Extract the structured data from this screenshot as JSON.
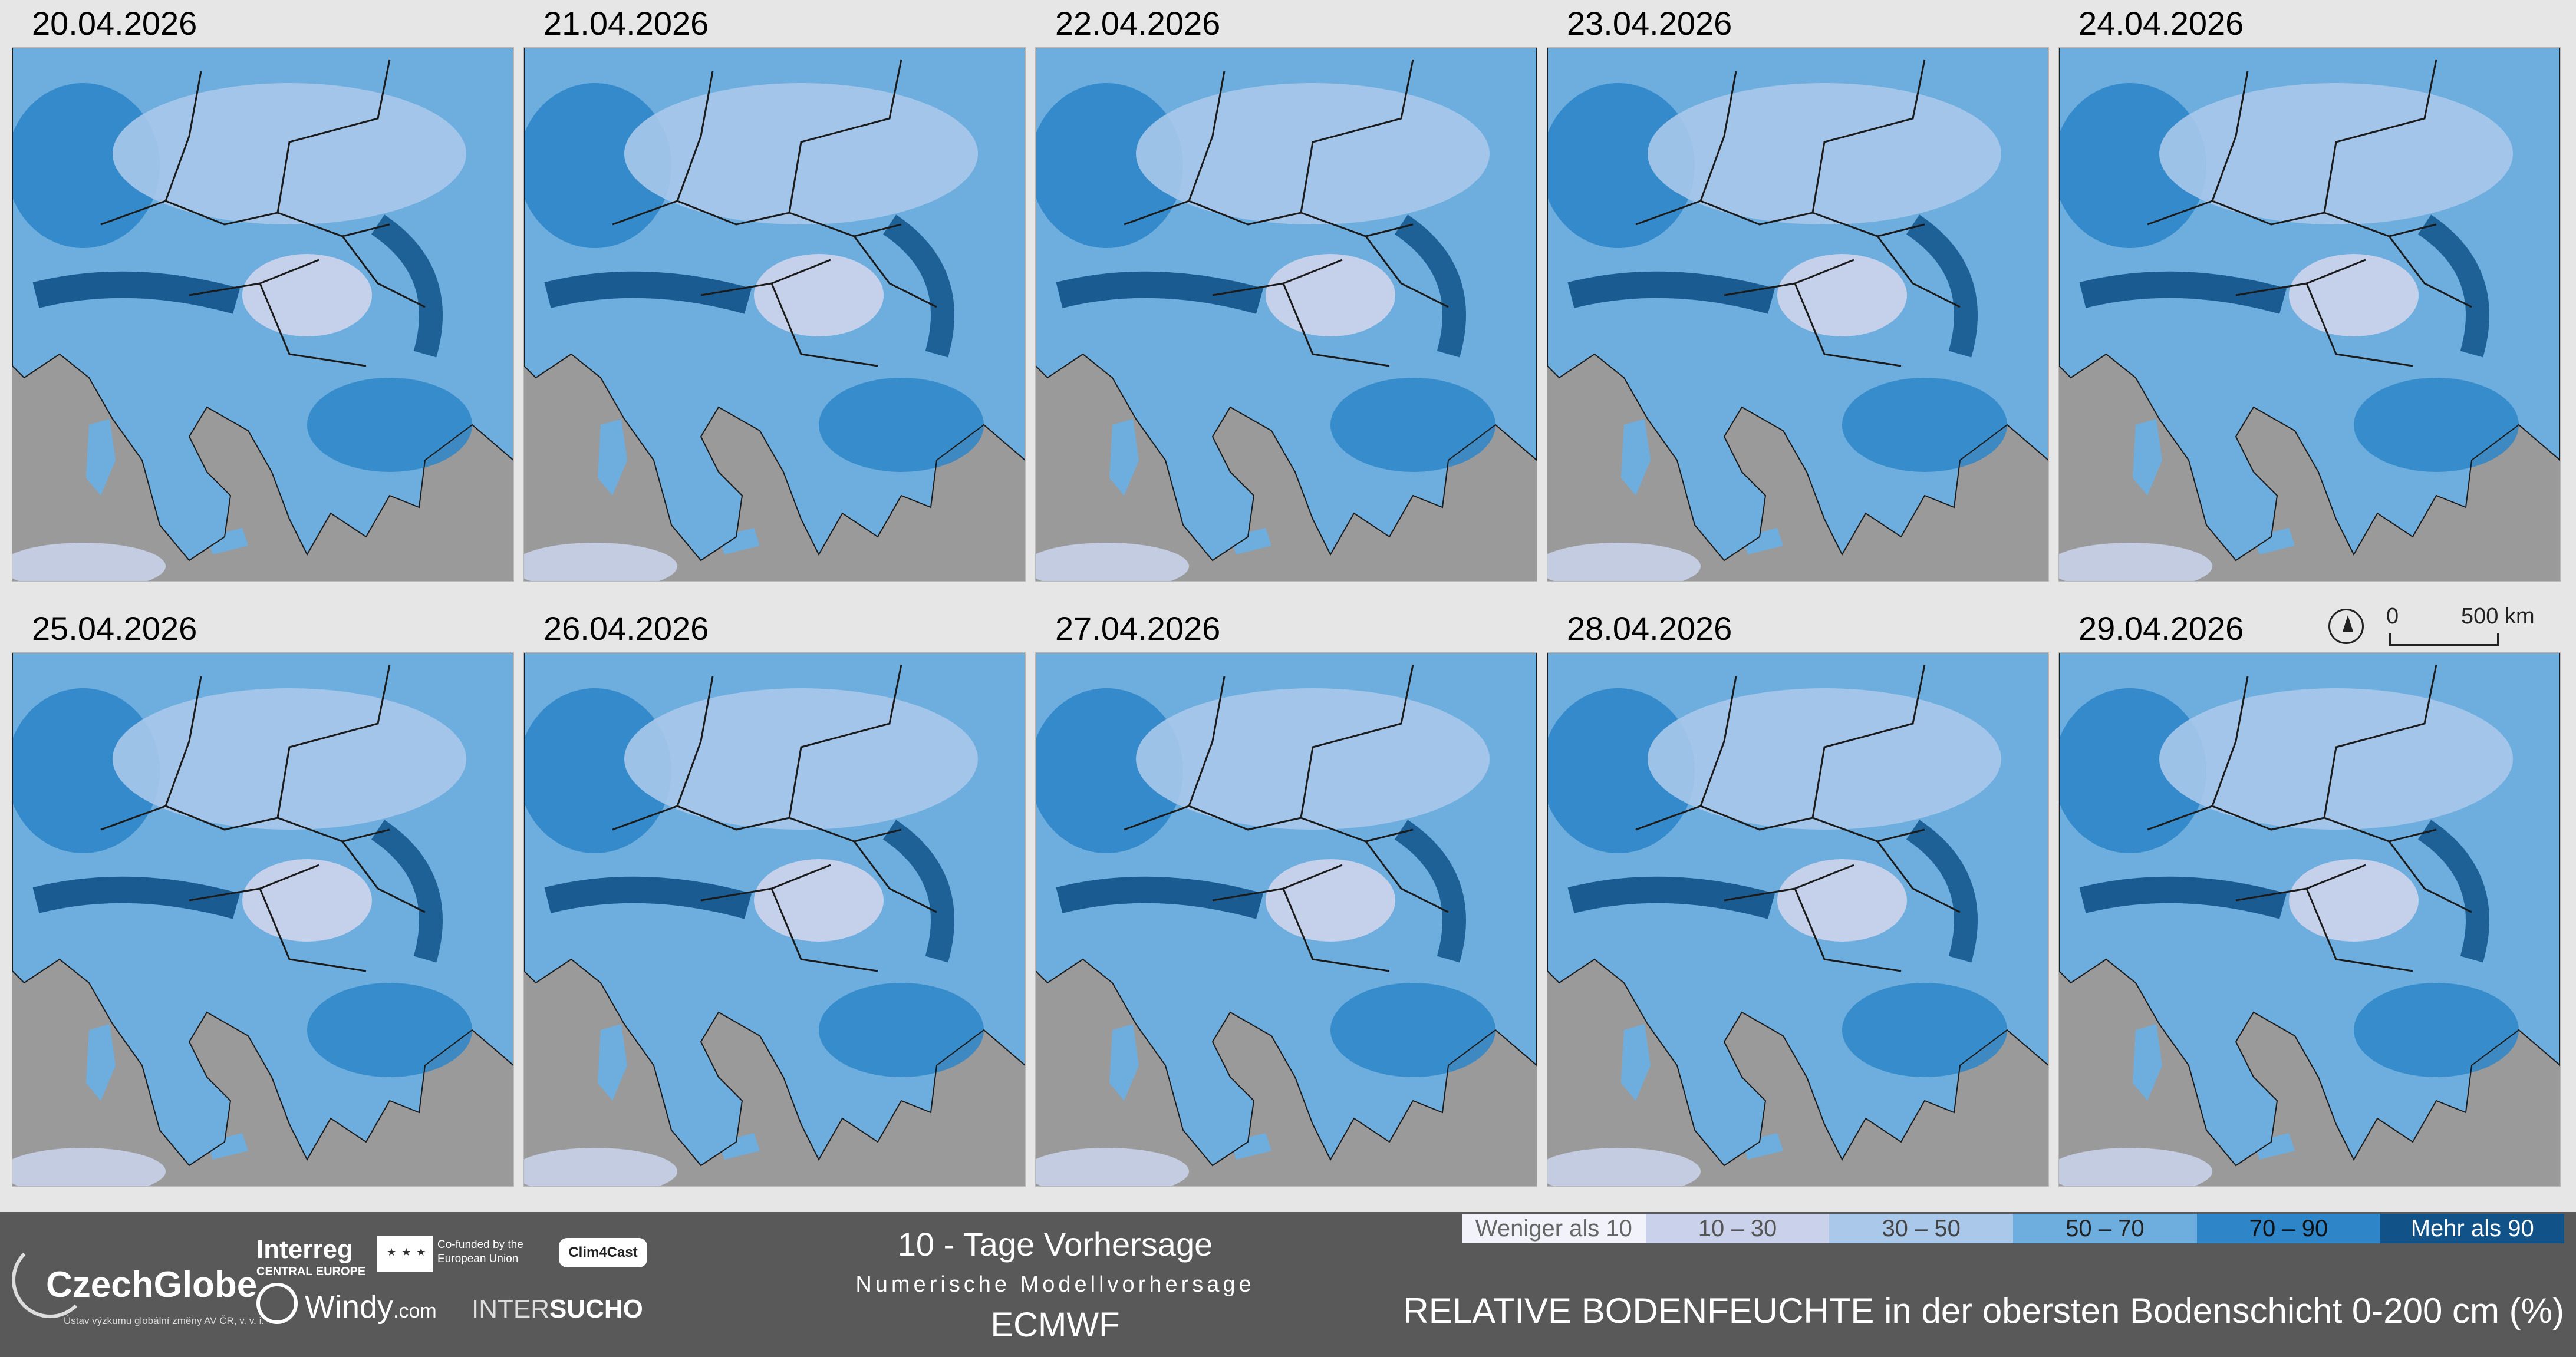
{
  "panels": [
    {
      "date": "20.04.2026"
    },
    {
      "date": "21.04.2026"
    },
    {
      "date": "22.04.2026"
    },
    {
      "date": "23.04.2026"
    },
    {
      "date": "24.04.2026"
    },
    {
      "date": "25.04.2026"
    },
    {
      "date": "26.04.2026"
    },
    {
      "date": "27.04.2026"
    },
    {
      "date": "28.04.2026"
    },
    {
      "date": "29.04.2026"
    }
  ],
  "scale_bar": {
    "zero": "0",
    "distance": "500 km"
  },
  "footer": {
    "title": "10 - Tage Vorhersage",
    "subtitle": "Numerische Modellvorhersage",
    "model": "ECMWF",
    "caption": "RELATIVE BODENFEUCHTE in der obersten Bodenschicht 0-200 cm (%)"
  },
  "legend": [
    {
      "label": "Weniger als 10",
      "color": "#f2f3fa",
      "text_color": "#666666"
    },
    {
      "label": "10 – 30",
      "color": "#c9d2ea",
      "text_color": "#555555"
    },
    {
      "label": "30 – 50",
      "color": "#a9c8ea",
      "text_color": "#444444"
    },
    {
      "label": "50 – 70",
      "color": "#6eaede",
      "text_color": "#222222"
    },
    {
      "label": "70 – 90",
      "color": "#2e86c8",
      "text_color": "#111111"
    },
    {
      "label": "Mehr als 90",
      "color": "#115389",
      "text_color": "#ffffff"
    }
  ],
  "logos": {
    "czechglobe_name": "CzechGlobe",
    "czechglobe_sub": "Ústav výzkumu globální změny AV ČR, v. v. i.",
    "interreg": "Interreg",
    "interreg_sub": "CENTRAL EUROPE",
    "eu_text": "Co-funded by the European Union",
    "clim4cast": "Clim4Cast",
    "windy": "Windy",
    "windy_com": ".com",
    "intersucho_a": "INTER",
    "intersucho_b": "SUCHO"
  },
  "map_colors": {
    "sea": "#9a9a9a",
    "land": "#6eaede",
    "moist": "#2e86c8",
    "dry": "#c9d2ea",
    "very_dry": "#a9c8ea",
    "wet": "#115389",
    "border": "#1b1b1b"
  }
}
